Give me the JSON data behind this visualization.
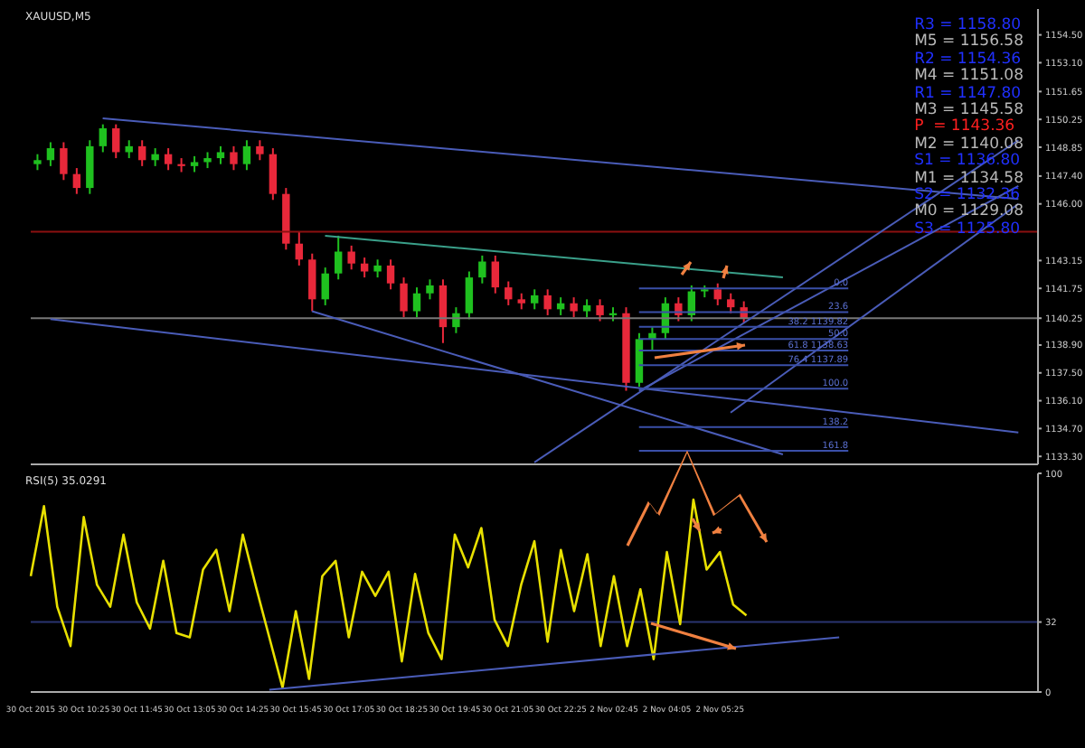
{
  "chart_data": [
    {
      "type": "candlestick",
      "title": "XAUUSD,M5",
      "tick_labels": "y",
      "categories": [
        null,
        null,
        null,
        null,
        null,
        null,
        null,
        null,
        null,
        null,
        null,
        null,
        null,
        null,
        null,
        null,
        null,
        null,
        null,
        null,
        null,
        null,
        null,
        null,
        null,
        null,
        null,
        null,
        null,
        null,
        null,
        null,
        null,
        null,
        null,
        null,
        null,
        null,
        null,
        null,
        null,
        null,
        null,
        null,
        null,
        null,
        null,
        null,
        null,
        null,
        null,
        null,
        null,
        null,
        null,
        null,
        null,
        null,
        null,
        null,
        null,
        null,
        null,
        null,
        null,
        null,
        null,
        null,
        null,
        null,
        null,
        null,
        null,
        null,
        null,
        null,
        null
      ],
      "ohlc": [
        [
          1148.0,
          1148.5,
          1147.7,
          1148.2
        ],
        [
          1148.2,
          1149.1,
          1147.9,
          1148.8
        ],
        [
          1148.8,
          1149.1,
          1147.2,
          1147.5
        ],
        [
          1147.5,
          1147.8,
          1146.5,
          1146.8
        ],
        [
          1146.8,
          1149.2,
          1146.5,
          1148.9
        ],
        [
          1148.9,
          1150.0,
          1148.6,
          1149.8
        ],
        [
          1149.8,
          1150.0,
          1148.3,
          1148.6
        ],
        [
          1148.6,
          1149.2,
          1148.3,
          1148.9
        ],
        [
          1148.9,
          1149.2,
          1147.9,
          1148.2
        ],
        [
          1148.2,
          1148.8,
          1147.9,
          1148.5
        ],
        [
          1148.5,
          1148.8,
          1147.7,
          1148.0
        ],
        [
          1148.0,
          1148.3,
          1147.6,
          1147.9
        ],
        [
          1147.9,
          1148.4,
          1147.6,
          1148.1
        ],
        [
          1148.1,
          1148.6,
          1147.8,
          1148.3
        ],
        [
          1148.3,
          1148.9,
          1148.0,
          1148.6
        ],
        [
          1148.6,
          1148.9,
          1147.7,
          1148.0
        ],
        [
          1148.0,
          1149.2,
          1147.7,
          1148.9
        ],
        [
          1148.9,
          1149.2,
          1148.2,
          1148.5
        ],
        [
          1148.5,
          1148.8,
          1146.2,
          1146.5
        ],
        [
          1146.5,
          1146.8,
          1143.7,
          1144.0
        ],
        [
          1144.0,
          1144.6,
          1142.9,
          1143.2
        ],
        [
          1143.2,
          1143.5,
          1140.6,
          1141.2
        ],
        [
          1141.2,
          1142.8,
          1140.9,
          1142.5
        ],
        [
          1142.5,
          1144.4,
          1142.2,
          1143.6
        ],
        [
          1143.6,
          1143.9,
          1142.7,
          1143.0
        ],
        [
          1143.0,
          1143.3,
          1142.3,
          1142.6
        ],
        [
          1142.6,
          1143.2,
          1142.3,
          1142.9
        ],
        [
          1142.9,
          1143.2,
          1141.7,
          1142.0
        ],
        [
          1142.0,
          1142.3,
          1140.3,
          1140.6
        ],
        [
          1140.6,
          1141.8,
          1140.3,
          1141.5
        ],
        [
          1141.5,
          1142.2,
          1141.2,
          1141.9
        ],
        [
          1141.9,
          1142.2,
          1139.0,
          1139.8
        ],
        [
          1139.8,
          1140.8,
          1139.5,
          1140.5
        ],
        [
          1140.5,
          1142.6,
          1140.2,
          1142.3
        ],
        [
          1142.3,
          1143.4,
          1142.0,
          1143.1
        ],
        [
          1143.1,
          1143.4,
          1141.5,
          1141.8
        ],
        [
          1141.8,
          1142.1,
          1140.9,
          1141.2
        ],
        [
          1141.2,
          1141.5,
          1140.7,
          1141.0
        ],
        [
          1141.0,
          1141.7,
          1140.7,
          1141.4
        ],
        [
          1141.4,
          1141.7,
          1140.4,
          1140.7
        ],
        [
          1140.7,
          1141.3,
          1140.4,
          1141.0
        ],
        [
          1141.0,
          1141.3,
          1140.3,
          1140.6
        ],
        [
          1140.6,
          1141.2,
          1140.3,
          1140.9
        ],
        [
          1140.9,
          1141.2,
          1140.1,
          1140.4
        ],
        [
          1140.4,
          1140.8,
          1140.1,
          1140.5
        ],
        [
          1140.5,
          1140.8,
          1136.6,
          1137.0
        ],
        [
          1137.0,
          1139.5,
          1136.8,
          1139.2
        ],
        [
          1139.2,
          1139.8,
          1138.6,
          1139.5
        ],
        [
          1139.5,
          1141.3,
          1139.2,
          1141.0
        ],
        [
          1141.0,
          1141.3,
          1140.1,
          1140.4
        ],
        [
          1140.4,
          1141.9,
          1140.1,
          1141.6
        ],
        [
          1141.6,
          1141.9,
          1141.3,
          1141.7
        ],
        [
          1141.7,
          1142.0,
          1140.9,
          1141.2
        ],
        [
          1141.2,
          1141.5,
          1140.5,
          1140.8
        ],
        [
          1140.8,
          1141.1,
          1140.0,
          1140.25
        ],
        null,
        null,
        null,
        null,
        null,
        null,
        null,
        null,
        null,
        null,
        null,
        null,
        null,
        null,
        null,
        null,
        null,
        null,
        null,
        null,
        null,
        null
      ],
      "colors": [
        "#1fc01f",
        "#1fc01f",
        "#e8283a",
        "#e8283a",
        "#1fc01f",
        "#1fc01f",
        "#e8283a",
        "#1fc01f",
        "#e8283a",
        "#1fc01f",
        "#e8283a",
        "#e8283a",
        "#1fc01f",
        "#1fc01f",
        "#1fc01f",
        "#e8283a",
        "#1fc01f",
        "#e8283a",
        "#e8283a",
        "#e8283a",
        "#e8283a",
        "#e8283a",
        "#1fc01f",
        "#1fc01f",
        "#e8283a",
        "#e8283a",
        "#1fc01f",
        "#e8283a",
        "#e8283a",
        "#1fc01f",
        "#1fc01f",
        "#e8283a",
        "#1fc01f",
        "#1fc01f",
        "#1fc01f",
        "#e8283a",
        "#e8283a",
        "#e8283a",
        "#1fc01f",
        "#e8283a",
        "#1fc01f",
        "#e8283a",
        "#1fc01f",
        "#e8283a",
        "#1fc01f",
        "#e8283a",
        "#1fc01f",
        "#1fc01f",
        "#1fc01f",
        "#e8283a",
        "#1fc01f",
        "#1fc01f",
        "#e8283a",
        "#e8283a",
        "#e8283a",
        null,
        null,
        null,
        null,
        null,
        null,
        null,
        null,
        null,
        null,
        null,
        null,
        null,
        null,
        null,
        null,
        null,
        null,
        null,
        null,
        null,
        null
      ],
      "ylim": [
        1132.9,
        1155.8
      ],
      "yticks": [
        {
          "value": 1154.5,
          "label": "1154.50"
        },
        {
          "value": 1153.1,
          "label": "1153.10"
        },
        {
          "value": 1151.65,
          "label": "1151.65"
        },
        {
          "value": 1150.25,
          "label": "1150.25"
        },
        {
          "value": 1148.85,
          "label": "1148.85"
        },
        {
          "value": 1147.4,
          "label": "1147.40"
        },
        {
          "value": 1146,
          "label": "1146.00"
        },
        {
          "value": 1143.15,
          "label": "1143.15"
        },
        {
          "value": 1141.75,
          "label": "1141.75"
        },
        {
          "value": 1140.25,
          "label": "1140.25"
        },
        {
          "value": 1138.9,
          "label": "1138.90"
        },
        {
          "value": 1137.5,
          "label": "1137.50"
        },
        {
          "value": 1136.1,
          "label": "1136.10"
        },
        {
          "value": 1134.7,
          "label": "1134.70"
        },
        {
          "value": 1133.3,
          "label": "1133.30"
        }
      ],
      "series": [
        {
          "type": "line",
          "color": "#4a5cb8",
          "values": [
            null,
            null,
            null,
            null,
            null,
            1150.3,
            null,
            null,
            null,
            null,
            null,
            null,
            null,
            null,
            null,
            null,
            null,
            null,
            null,
            null,
            null,
            null,
            null,
            null,
            null,
            null,
            null,
            null,
            null,
            null,
            null,
            null,
            null,
            null,
            null,
            null,
            null,
            null,
            null,
            null,
            null,
            null,
            null,
            null,
            null,
            null,
            null,
            null,
            null,
            null,
            null,
            null,
            null,
            null,
            null,
            null,
            null,
            null,
            null,
            null,
            null,
            null,
            null,
            null,
            null,
            null,
            null,
            null,
            null,
            null,
            null,
            null,
            null,
            null,
            null,
            1146.25,
            null
          ]
        },
        {
          "type": "line",
          "color": "#3aa08a",
          "values": [
            null,
            null,
            null,
            null,
            null,
            null,
            null,
            null,
            null,
            null,
            null,
            null,
            null,
            null,
            null,
            null,
            null,
            null,
            null,
            null,
            null,
            null,
            1144.4,
            null,
            null,
            null,
            null,
            null,
            null,
            null,
            null,
            null,
            null,
            null,
            null,
            null,
            null,
            null,
            null,
            null,
            null,
            null,
            null,
            null,
            null,
            null,
            null,
            null,
            null,
            null,
            null,
            null,
            null,
            null,
            null,
            null,
            null,
            1142.3,
            null,
            null,
            null,
            null,
            null,
            null,
            null,
            null,
            null,
            null,
            null,
            null,
            null,
            null,
            null,
            null,
            null,
            null,
            null
          ]
        },
        {
          "type": "line",
          "color": "#4a5cb8",
          "values": [
            null,
            1140.2,
            null,
            null,
            null,
            null,
            null,
            null,
            null,
            null,
            null,
            null,
            null,
            null,
            null,
            null,
            null,
            null,
            null,
            null,
            null,
            null,
            null,
            null,
            null,
            null,
            null,
            null,
            null,
            null,
            null,
            null,
            null,
            null,
            null,
            null,
            null,
            null,
            null,
            null,
            null,
            null,
            null,
            null,
            null,
            null,
            null,
            null,
            null,
            null,
            null,
            null,
            null,
            null,
            null,
            null,
            null,
            null,
            null,
            null,
            null,
            null,
            null,
            null,
            null,
            null,
            null,
            null,
            null,
            null,
            null,
            null,
            null,
            null,
            null,
            1134.5,
            null
          ]
        },
        {
          "type": "line",
          "color": "#4a5cb8",
          "values": [
            null,
            null,
            null,
            null,
            null,
            null,
            null,
            null,
            null,
            null,
            null,
            null,
            null,
            null,
            null,
            null,
            null,
            null,
            null,
            null,
            null,
            1140.6,
            null,
            null,
            null,
            null,
            null,
            null,
            null,
            null,
            null,
            null,
            null,
            null,
            null,
            null,
            null,
            null,
            null,
            null,
            null,
            null,
            null,
            null,
            null,
            null,
            null,
            null,
            null,
            null,
            null,
            null,
            null,
            null,
            null,
            null,
            null,
            1133.4,
            null,
            null,
            null,
            null,
            null,
            null,
            null,
            null,
            null,
            null,
            null,
            null,
            null,
            null,
            null,
            null,
            null,
            null,
            null
          ]
        },
        {
          "type": "line",
          "color": "#4a5cb8",
          "values": [
            null,
            null,
            null,
            null,
            null,
            null,
            null,
            null,
            null,
            null,
            null,
            null,
            null,
            null,
            null,
            null,
            null,
            null,
            null,
            null,
            null,
            null,
            null,
            null,
            null,
            null,
            null,
            null,
            null,
            null,
            null,
            null,
            null,
            null,
            null,
            null,
            null,
            null,
            null,
            null,
            null,
            null,
            null,
            null,
            null,
            null,
            1136.6,
            null,
            null,
            null,
            null,
            null,
            null,
            null,
            null,
            null,
            null,
            null,
            null,
            null,
            null,
            null,
            null,
            null,
            null,
            null,
            null,
            null,
            null,
            null,
            null,
            null,
            null,
            null,
            null,
            1146.9,
            null
          ]
        },
        {
          "type": "line",
          "color": "#4a5cb8",
          "values": [
            null,
            null,
            null,
            null,
            null,
            null,
            null,
            null,
            null,
            null,
            null,
            null,
            null,
            null,
            null,
            null,
            null,
            null,
            null,
            null,
            null,
            null,
            null,
            null,
            null,
            null,
            null,
            null,
            null,
            null,
            null,
            null,
            null,
            null,
            null,
            null,
            null,
            null,
            1133.0,
            null,
            null,
            null,
            null,
            null,
            null,
            null,
            null,
            null,
            null,
            null,
            null,
            null,
            null,
            null,
            null,
            null,
            null,
            null,
            null,
            null,
            null,
            null,
            null,
            null,
            null,
            null,
            null,
            null,
            null,
            null,
            null,
            null,
            null,
            null,
            null,
            1149.2,
            null
          ]
        },
        {
          "type": "line",
          "color": "#4a5cb8",
          "values": [
            null,
            null,
            null,
            null,
            null,
            null,
            null,
            null,
            null,
            null,
            null,
            null,
            null,
            null,
            null,
            null,
            null,
            null,
            null,
            null,
            null,
            null,
            null,
            null,
            null,
            null,
            null,
            null,
            null,
            null,
            null,
            null,
            null,
            null,
            null,
            null,
            null,
            null,
            null,
            null,
            null,
            null,
            null,
            null,
            null,
            null,
            null,
            null,
            null,
            null,
            null,
            null,
            null,
            1135.5,
            null,
            null,
            null,
            null,
            null,
            null,
            null,
            null,
            null,
            null,
            null,
            null,
            null,
            null,
            null,
            null,
            null,
            null,
            null,
            null,
            null,
            1146.0,
            null
          ]
        },
        {
          "type": "line",
          "color": "#3a4fa8",
          "values": [
            null,
            null,
            null,
            null,
            null,
            null,
            null,
            null,
            null,
            null,
            null,
            null,
            null,
            null,
            null,
            null,
            null,
            null,
            null,
            null,
            null,
            null,
            null,
            null,
            null,
            null,
            null,
            null,
            null,
            null,
            null,
            null,
            null,
            null,
            null,
            null,
            null,
            null,
            null,
            null,
            null,
            null,
            null,
            null,
            null,
            null,
            1141.75,
            null,
            null,
            null,
            null,
            null,
            null,
            null,
            null,
            null,
            null,
            null,
            null,
            null,
            null,
            null,
            1141.75,
            null,
            null,
            null,
            null,
            null,
            null,
            null,
            null,
            null,
            null,
            null,
            null,
            null,
            null
          ]
        },
        {
          "type": "line",
          "color": "#3a4fa8",
          "values": [
            null,
            null,
            null,
            null,
            null,
            null,
            null,
            null,
            null,
            null,
            null,
            null,
            null,
            null,
            null,
            null,
            null,
            null,
            null,
            null,
            null,
            null,
            null,
            null,
            null,
            null,
            null,
            null,
            null,
            null,
            null,
            null,
            null,
            null,
            null,
            null,
            null,
            null,
            null,
            null,
            null,
            null,
            null,
            null,
            null,
            null,
            1140.56,
            null,
            null,
            null,
            null,
            null,
            null,
            null,
            null,
            null,
            null,
            null,
            null,
            null,
            null,
            null,
            1140.56,
            null,
            null,
            null,
            null,
            null,
            null,
            null,
            null,
            null,
            null,
            null,
            null,
            null,
            null
          ]
        },
        {
          "type": "line",
          "color": "#3a4fa8",
          "values": [
            null,
            null,
            null,
            null,
            null,
            null,
            null,
            null,
            null,
            null,
            null,
            null,
            null,
            null,
            null,
            null,
            null,
            null,
            null,
            null,
            null,
            null,
            null,
            null,
            null,
            null,
            null,
            null,
            null,
            null,
            null,
            null,
            null,
            null,
            null,
            null,
            null,
            null,
            null,
            null,
            null,
            null,
            null,
            null,
            null,
            null,
            1139.82,
            null,
            null,
            null,
            null,
            null,
            null,
            null,
            null,
            null,
            null,
            null,
            null,
            null,
            null,
            null,
            1139.82,
            null,
            null,
            null,
            null,
            null,
            null,
            null,
            null,
            null,
            null,
            null,
            null,
            null,
            null
          ]
        },
        {
          "type": "line",
          "color": "#3a4fa8",
          "values": [
            null,
            null,
            null,
            null,
            null,
            null,
            null,
            null,
            null,
            null,
            null,
            null,
            null,
            null,
            null,
            null,
            null,
            null,
            null,
            null,
            null,
            null,
            null,
            null,
            null,
            null,
            null,
            null,
            null,
            null,
            null,
            null,
            null,
            null,
            null,
            null,
            null,
            null,
            null,
            null,
            null,
            null,
            null,
            null,
            null,
            null,
            1139.2,
            null,
            null,
            null,
            null,
            null,
            null,
            null,
            null,
            null,
            null,
            null,
            null,
            null,
            null,
            null,
            1139.2,
            null,
            null,
            null,
            null,
            null,
            null,
            null,
            null,
            null,
            null,
            null,
            null,
            null,
            null
          ]
        },
        {
          "type": "line",
          "color": "#3a4fa8",
          "values": [
            null,
            null,
            null,
            null,
            null,
            null,
            null,
            null,
            null,
            null,
            null,
            null,
            null,
            null,
            null,
            null,
            null,
            null,
            null,
            null,
            null,
            null,
            null,
            null,
            null,
            null,
            null,
            null,
            null,
            null,
            null,
            null,
            null,
            null,
            null,
            null,
            null,
            null,
            null,
            null,
            null,
            null,
            null,
            null,
            null,
            null,
            1138.63,
            null,
            null,
            null,
            null,
            null,
            null,
            null,
            null,
            null,
            null,
            null,
            null,
            null,
            null,
            null,
            1138.63,
            null,
            null,
            null,
            null,
            null,
            null,
            null,
            null,
            null,
            null,
            null,
            null,
            null,
            null
          ]
        },
        {
          "type": "line",
          "color": "#3a4fa8",
          "values": [
            null,
            null,
            null,
            null,
            null,
            null,
            null,
            null,
            null,
            null,
            null,
            null,
            null,
            null,
            null,
            null,
            null,
            null,
            null,
            null,
            null,
            null,
            null,
            null,
            null,
            null,
            null,
            null,
            null,
            null,
            null,
            null,
            null,
            null,
            null,
            null,
            null,
            null,
            null,
            null,
            null,
            null,
            null,
            null,
            null,
            null,
            1137.89,
            null,
            null,
            null,
            null,
            null,
            null,
            null,
            null,
            null,
            null,
            null,
            null,
            null,
            null,
            null,
            1137.89,
            null,
            null,
            null,
            null,
            null,
            null,
            null,
            null,
            null,
            null,
            null,
            null,
            null,
            null
          ]
        },
        {
          "type": "line",
          "color": "#3a4fa8",
          "values": [
            null,
            null,
            null,
            null,
            null,
            null,
            null,
            null,
            null,
            null,
            null,
            null,
            null,
            null,
            null,
            null,
            null,
            null,
            null,
            null,
            null,
            null,
            null,
            null,
            null,
            null,
            null,
            null,
            null,
            null,
            null,
            null,
            null,
            null,
            null,
            null,
            null,
            null,
            null,
            null,
            null,
            null,
            null,
            null,
            null,
            null,
            1136.7,
            null,
            null,
            null,
            null,
            null,
            null,
            null,
            null,
            null,
            null,
            null,
            null,
            null,
            null,
            null,
            1136.7,
            null,
            null,
            null,
            null,
            null,
            null,
            null,
            null,
            null,
            null,
            null,
            null,
            null,
            null
          ]
        },
        {
          "type": "line",
          "color": "#3a4fa8",
          "values": [
            null,
            null,
            null,
            null,
            null,
            null,
            null,
            null,
            null,
            null,
            null,
            null,
            null,
            null,
            null,
            null,
            null,
            null,
            null,
            null,
            null,
            null,
            null,
            null,
            null,
            null,
            null,
            null,
            null,
            null,
            null,
            null,
            null,
            null,
            null,
            null,
            null,
            null,
            null,
            null,
            null,
            null,
            null,
            null,
            null,
            null,
            1134.77,
            null,
            null,
            null,
            null,
            null,
            null,
            null,
            null,
            null,
            null,
            null,
            null,
            null,
            null,
            null,
            1134.77,
            null,
            null,
            null,
            null,
            null,
            null,
            null,
            null,
            null,
            null,
            null,
            null,
            null,
            null
          ]
        },
        {
          "type": "line",
          "color": "#3a4fa8",
          "values": [
            null,
            null,
            null,
            null,
            null,
            null,
            null,
            null,
            null,
            null,
            null,
            null,
            null,
            null,
            null,
            null,
            null,
            null,
            null,
            null,
            null,
            null,
            null,
            null,
            null,
            null,
            null,
            null,
            null,
            null,
            null,
            null,
            null,
            null,
            null,
            null,
            null,
            null,
            null,
            null,
            null,
            null,
            null,
            null,
            null,
            null,
            1133.58,
            null,
            null,
            null,
            null,
            null,
            null,
            null,
            null,
            null,
            null,
            null,
            null,
            null,
            null,
            null,
            1133.58,
            null,
            null,
            null,
            null,
            null,
            null,
            null,
            null,
            null,
            null,
            null,
            null,
            null,
            null
          ]
        }
      ],
      "ref_lines": [
        {
          "axis": "y",
          "value": 1144.6,
          "color": "#8b1010"
        },
        {
          "axis": "y",
          "value": 1140.25,
          "color": "#777777"
        }
      ],
      "annotations": [
        "R3 = 1158.80",
        "M5 = 1156.58",
        "R2 = 1154.36",
        "M4 = 1151.08",
        "R1 = 1147.80",
        "M3 = 1145.58",
        "P  = 1143.36",
        "M2 = 1140.08",
        "S1 = 1136.80",
        "M1 = 1134.58",
        "S2 = 1132.36",
        "M0 = 1129.08",
        "S3 = 1125.80",
        {
          "text": "0.0",
          "y": 1141.75
        },
        {
          "text": "23.6",
          "y": 1140.56
        },
        {
          "text": "38.2 1139.82",
          "y": 1139.82
        },
        {
          "text": "50.0",
          "y": 1139.2
        },
        {
          "text": "61.8 1138.63",
          "y": 1138.63
        },
        {
          "text": "76.4 1137.89",
          "y": 1137.89
        },
        {
          "text": "100.0",
          "y": 1136.7
        },
        {
          "text": "138.2",
          "y": 1134.77
        },
        {
          "text": "161.8",
          "y": 1133.58
        }
      ]
    },
    {
      "type": "line",
      "title": "RSI(5) 35.0291",
      "categories": [
        "30 Oct 2015",
        null,
        null,
        null,
        "30 Oct 10:25",
        null,
        null,
        null,
        "30 Oct 11:45",
        null,
        null,
        null,
        "30 Oct 13:05",
        null,
        null,
        null,
        "30 Oct 14:25",
        null,
        null,
        null,
        "30 Oct 15:45",
        null,
        null,
        null,
        "30 Oct 17:05",
        null,
        null,
        null,
        "30 Oct 18:25",
        null,
        null,
        null,
        "30 Oct 19:45",
        null,
        null,
        null,
        "30 Oct 21:05",
        null,
        null,
        null,
        "30 Oct 22:25",
        null,
        null,
        null,
        "2 Nov 02:45",
        null,
        null,
        null,
        "2 Nov 04:05",
        null,
        null,
        null,
        "2 Nov 05:25",
        null,
        null,
        null,
        null,
        null,
        null,
        null,
        null,
        null,
        null,
        null,
        null,
        null,
        null,
        null,
        null,
        null,
        null,
        null,
        null,
        null,
        null,
        null,
        null
      ],
      "ylim": [
        0,
        100
      ],
      "yticks": [
        0,
        32,
        100
      ],
      "series": [
        {
          "color": "#e8e000",
          "values": [
            53,
            85,
            39,
            21,
            80,
            49,
            39,
            72,
            41,
            29,
            60,
            27,
            25,
            56,
            65,
            37,
            72,
            48,
            25,
            2,
            37,
            6,
            53,
            60,
            25,
            55,
            44,
            55,
            14,
            54,
            27,
            15,
            72,
            57,
            75,
            33,
            21,
            49,
            69,
            23,
            65,
            37,
            63,
            21,
            53,
            21,
            47,
            15,
            64,
            31,
            88,
            56,
            64,
            40,
            35,
            null,
            null,
            null,
            null,
            null,
            null,
            null,
            null,
            null,
            null,
            null,
            null,
            null,
            null,
            null,
            null,
            null,
            null,
            null,
            null,
            null,
            null
          ]
        },
        {
          "type": "line",
          "color": "#4a5cb8",
          "values": [
            null,
            null,
            null,
            null,
            null,
            null,
            null,
            null,
            null,
            null,
            null,
            null,
            null,
            null,
            null,
            null,
            null,
            null,
            1,
            null,
            null,
            null,
            null,
            null,
            null,
            null,
            null,
            null,
            null,
            null,
            null,
            null,
            null,
            null,
            null,
            null,
            null,
            null,
            null,
            null,
            null,
            null,
            null,
            null,
            null,
            null,
            null,
            null,
            null,
            null,
            null,
            null,
            null,
            null,
            null,
            null,
            null,
            null,
            null,
            null,
            null,
            25,
            null,
            null,
            null,
            null,
            null,
            null,
            null,
            null,
            null,
            null,
            null,
            null,
            null,
            null,
            null
          ]
        }
      ],
      "ref_lines": [
        {
          "axis": "y",
          "value": 32,
          "color": "#2a3470"
        }
      ]
    }
  ]
}
